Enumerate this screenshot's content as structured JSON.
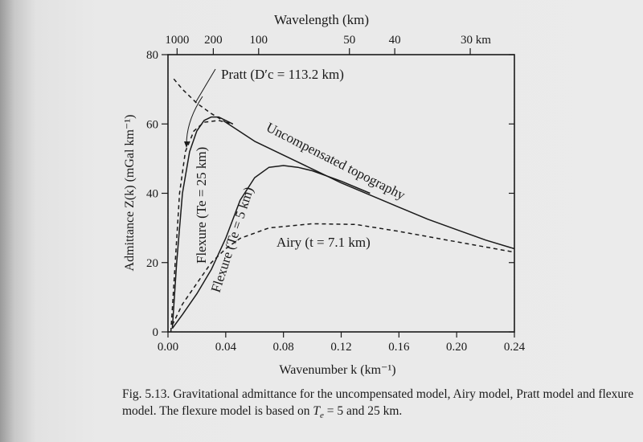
{
  "chart_data": {
    "type": "line",
    "caption_label": "Fig. 5.13.",
    "caption_text": "Gravitational admittance for the uncompensated model, Airy model, Pratt model and flexure model. The flexure model is based on",
    "caption_te": "T",
    "caption_te_sub": "e",
    "caption_end": "= 5 and 25 km.",
    "xlabel": "Wavenumber k (km⁻¹)",
    "ylabel": "Admittance Z(k) (mGal km⁻¹)",
    "top_xlabel": "Wavelength (km)",
    "xlim": [
      0,
      0.24
    ],
    "ylim": [
      0,
      80
    ],
    "x_ticks": [
      "0.00",
      "0.04",
      "0.08",
      "0.12",
      "0.16",
      "0.20",
      "0.24"
    ],
    "y_ticks": [
      "0",
      "20",
      "40",
      "60",
      "80"
    ],
    "top_ticks": [
      {
        "label": "1000",
        "k": 0.0063
      },
      {
        "label": "200",
        "k": 0.0314
      },
      {
        "label": "100",
        "k": 0.0628
      },
      {
        "label": "50",
        "k": 0.1257
      },
      {
        "label": "40",
        "k": 0.1571
      },
      {
        "label": "30 km",
        "k": 0.2094
      }
    ],
    "grid": false,
    "series": [
      {
        "name": "Uncompensated topography",
        "label": "Uncompensated topography",
        "style": "solid",
        "x": [
          0.04,
          0.06,
          0.08,
          0.1,
          0.12,
          0.14,
          0.16,
          0.18,
          0.2,
          0.22,
          0.24
        ],
        "y": [
          60.5,
          55,
          51,
          47,
          43,
          39.5,
          36,
          32.5,
          29.5,
          26.5,
          24
        ]
      },
      {
        "name": "Uncompensated topography (extension)",
        "label": "",
        "style": "dashed",
        "x": [
          0.004,
          0.01,
          0.02,
          0.03,
          0.04
        ],
        "y": [
          73,
          70,
          66,
          63,
          60.5
        ]
      },
      {
        "name": "Pratt",
        "label": "Pratt (D′c = 113.2 km)",
        "style": "dashed",
        "x": [
          0.002,
          0.005,
          0.008,
          0.012,
          0.018,
          0.025,
          0.035,
          0.045
        ],
        "y": [
          0,
          20,
          40,
          52,
          58,
          60.5,
          61,
          60
        ]
      },
      {
        "name": "Flexure Te = 25 km",
        "label": "Flexure (Te = 25 km)",
        "style": "solid",
        "x": [
          0.003,
          0.006,
          0.01,
          0.015,
          0.02,
          0.025,
          0.03,
          0.035,
          0.045
        ],
        "y": [
          1,
          20,
          40,
          52,
          58,
          61,
          62,
          62,
          60
        ]
      },
      {
        "name": "Flexure Te = 5 km",
        "label": "Flexure (Te = 5 km)",
        "style": "solid",
        "x": [
          0.003,
          0.01,
          0.02,
          0.03,
          0.04,
          0.05,
          0.06,
          0.07,
          0.08,
          0.09,
          0.1,
          0.12,
          0.14
        ],
        "y": [
          1,
          5,
          11,
          18,
          27,
          38,
          44.5,
          47.5,
          48,
          47.5,
          46.5,
          43.5,
          40
        ]
      },
      {
        "name": "Airy",
        "label": "Airy (t = 7.1 km)",
        "style": "dashed",
        "x": [
          0.003,
          0.01,
          0.02,
          0.03,
          0.04,
          0.05,
          0.07,
          0.1,
          0.13,
          0.16,
          0.2,
          0.24
        ],
        "y": [
          2,
          8,
          14,
          20,
          24,
          27,
          30,
          31.2,
          31,
          29,
          26,
          23
        ]
      }
    ]
  }
}
